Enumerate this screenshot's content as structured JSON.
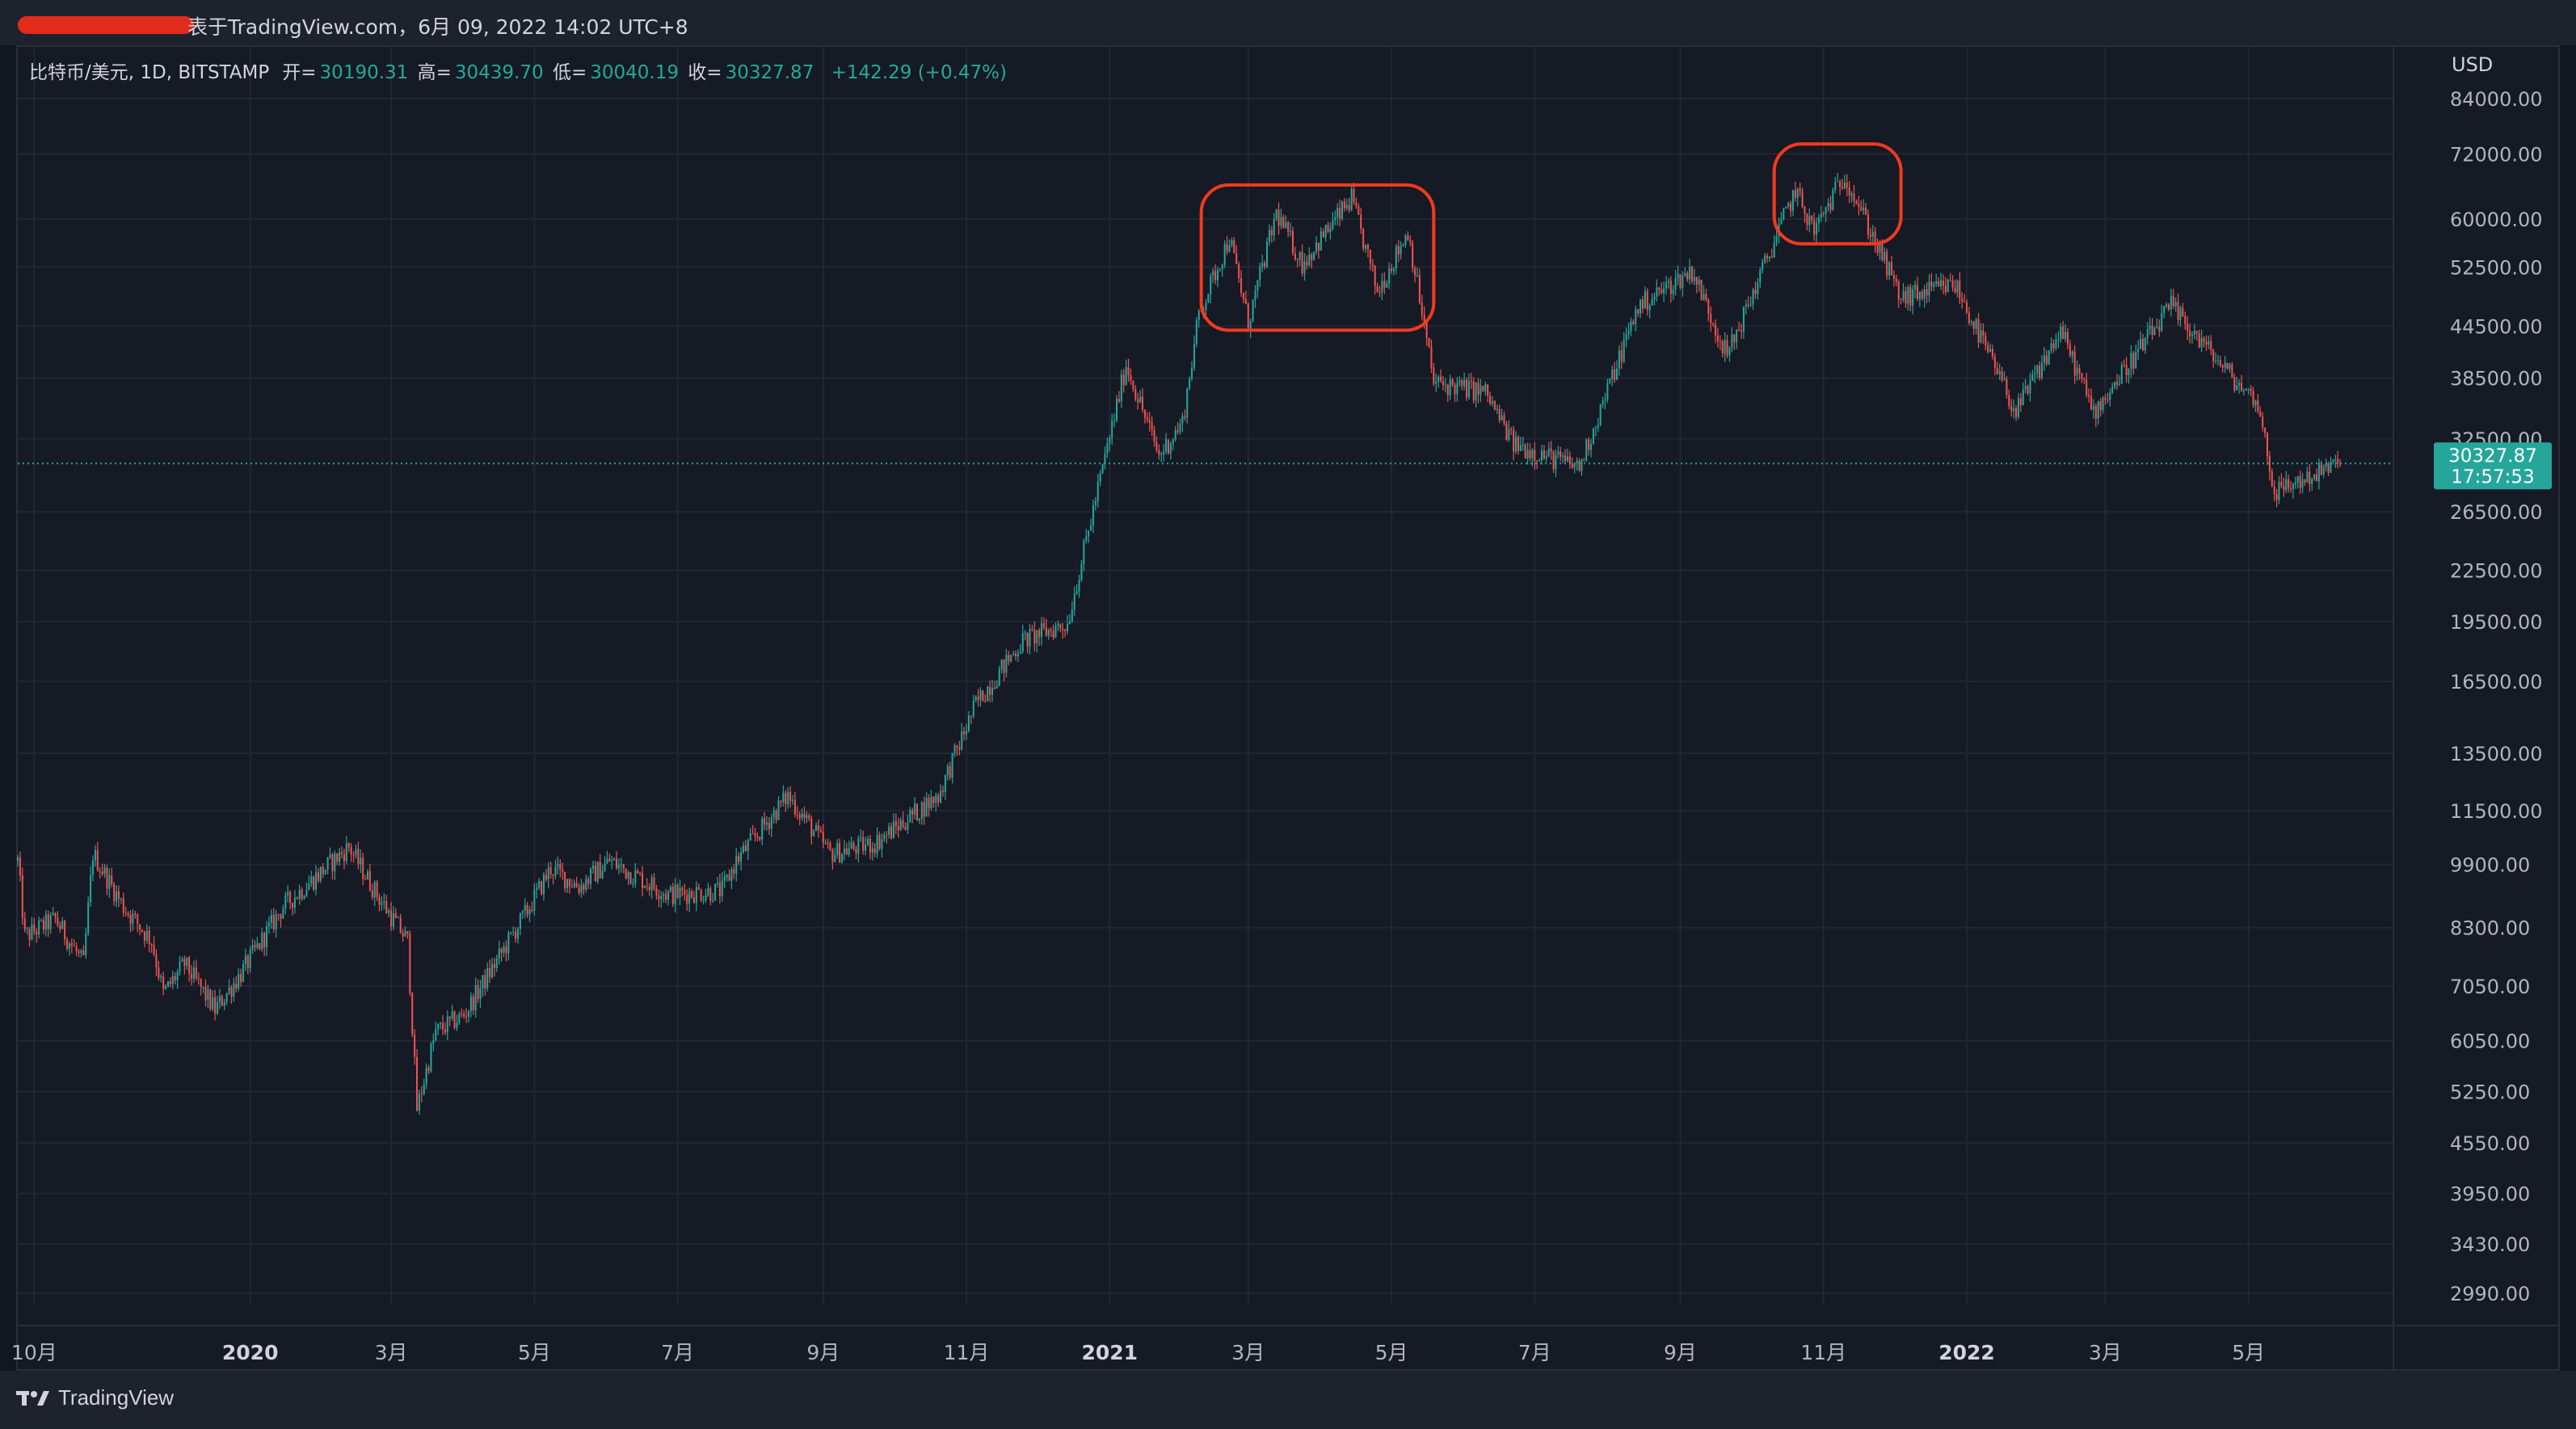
{
  "header": {
    "text": "表于TradingView.com，6月 09, 2022 14:02 UTC+8"
  },
  "legend": {
    "symbol": "比特币/美元, 1D, BITSTAMP",
    "open_label": "开=",
    "open": "30190.31",
    "high_label": "高=",
    "high": "30439.70",
    "low_label": "低=",
    "low": "30040.19",
    "close_label": "收=",
    "close": "30327.87",
    "change": "+142.29 (+0.47%)"
  },
  "footer": {
    "brand": "TradingView"
  },
  "chart_data": {
    "type": "candlestick",
    "currency": "USD",
    "scale": "log",
    "ylim": [
      2990,
      84000
    ],
    "y_ticks": [
      2990,
      3430,
      3950,
      4550,
      5250,
      6050,
      7050,
      8300,
      9900,
      11500,
      13500,
      16500,
      19500,
      22500,
      26500,
      32500,
      38500,
      44500,
      52500,
      60000,
      72000,
      84000
    ],
    "y_tick_labels": [
      "2990.00",
      "3430.00",
      "3950.00",
      "4550.00",
      "5250.00",
      "6050.00",
      "7050.00",
      "8300.00",
      "9900.00",
      "11500.00",
      "13500.00",
      "16500.00",
      "19500.00",
      "22500.00",
      "26500.00",
      "32500.00",
      "38500.00",
      "44500.00",
      "52500.00",
      "60000.00",
      "72000.00",
      "84000.00"
    ],
    "x_labels": [
      {
        "date": "2019-10-01",
        "label": "10月",
        "bold": false
      },
      {
        "date": "2020-01-01",
        "label": "2020",
        "bold": true
      },
      {
        "date": "2020-03-01",
        "label": "3月",
        "bold": false
      },
      {
        "date": "2020-05-01",
        "label": "5月",
        "bold": false
      },
      {
        "date": "2020-07-01",
        "label": "7月",
        "bold": false
      },
      {
        "date": "2020-09-01",
        "label": "9月",
        "bold": false
      },
      {
        "date": "2020-11-01",
        "label": "11月",
        "bold": false
      },
      {
        "date": "2021-01-01",
        "label": "2021",
        "bold": true
      },
      {
        "date": "2021-03-01",
        "label": "3月",
        "bold": false
      },
      {
        "date": "2021-05-01",
        "label": "5月",
        "bold": false
      },
      {
        "date": "2021-07-01",
        "label": "7月",
        "bold": false
      },
      {
        "date": "2021-09-01",
        "label": "9月",
        "bold": false
      },
      {
        "date": "2021-11-01",
        "label": "11月",
        "bold": false
      },
      {
        "date": "2022-01-01",
        "label": "2022",
        "bold": true
      },
      {
        "date": "2022-03-01",
        "label": "3月",
        "bold": false
      },
      {
        "date": "2022-05-01",
        "label": "5月",
        "bold": false
      }
    ],
    "x_range": [
      "2019-09-24",
      "2022-07-01"
    ],
    "price_path": [
      [
        "2019-09-24",
        10000
      ],
      [
        "2019-09-27",
        8100
      ],
      [
        "2019-10-10",
        8500
      ],
      [
        "2019-10-22",
        7500
      ],
      [
        "2019-10-26",
        10200
      ],
      [
        "2019-11-08",
        8800
      ],
      [
        "2019-11-20",
        8000
      ],
      [
        "2019-11-25",
        6900
      ],
      [
        "2019-12-04",
        7500
      ],
      [
        "2019-12-17",
        6600
      ],
      [
        "2019-12-28",
        7300
      ],
      [
        "2020-01-15",
        8800
      ],
      [
        "2020-02-12",
        10400
      ],
      [
        "2020-02-25",
        9000
      ],
      [
        "2020-03-08",
        8000
      ],
      [
        "2020-03-12",
        5000
      ],
      [
        "2020-03-20",
        6200
      ],
      [
        "2020-04-01",
        6500
      ],
      [
        "2020-04-29",
        8800
      ],
      [
        "2020-05-08",
        9800
      ],
      [
        "2020-05-20",
        9300
      ],
      [
        "2020-06-02",
        10000
      ],
      [
        "2020-06-27",
        9100
      ],
      [
        "2020-07-20",
        9200
      ],
      [
        "2020-07-26",
        10000
      ],
      [
        "2020-08-17",
        12000
      ],
      [
        "2020-09-04",
        10200
      ],
      [
        "2020-09-23",
        10500
      ],
      [
        "2020-10-20",
        12000
      ],
      [
        "2020-11-05",
        15500
      ],
      [
        "2020-11-25",
        18500
      ],
      [
        "2020-12-14",
        19400
      ],
      [
        "2021-01-08",
        40000
      ],
      [
        "2021-01-22",
        31000
      ],
      [
        "2021-02-01",
        34000
      ],
      [
        "2021-02-08",
        46000
      ],
      [
        "2021-02-21",
        57000
      ],
      [
        "2021-03-01",
        45000
      ],
      [
        "2021-03-13",
        61000
      ],
      [
        "2021-03-24",
        53000
      ],
      [
        "2021-04-14",
        63500
      ],
      [
        "2021-04-25",
        49000
      ],
      [
        "2021-05-08",
        58000
      ],
      [
        "2021-05-12",
        50000
      ],
      [
        "2021-05-19",
        38000
      ],
      [
        "2021-06-10",
        37000
      ],
      [
        "2021-06-22",
        32000
      ],
      [
        "2021-07-20",
        30000
      ],
      [
        "2021-08-14",
        47000
      ],
      [
        "2021-09-06",
        52000
      ],
      [
        "2021-09-21",
        41000
      ],
      [
        "2021-10-20",
        65000
      ],
      [
        "2021-10-28",
        58000
      ],
      [
        "2021-11-10",
        68000
      ],
      [
        "2021-11-26",
        54000
      ],
      [
        "2021-12-04",
        48000
      ],
      [
        "2021-12-27",
        50000
      ],
      [
        "2022-01-22",
        35000
      ],
      [
        "2022-02-10",
        44000
      ],
      [
        "2022-02-24",
        35000
      ],
      [
        "2022-03-29",
        47000
      ],
      [
        "2022-04-26",
        38000
      ],
      [
        "2022-05-05",
        36000
      ],
      [
        "2022-05-12",
        28000
      ],
      [
        "2022-06-09",
        30327.87
      ]
    ],
    "last_price": 30327.87,
    "last_price_label": "30327.87",
    "countdown": "17:57:53",
    "annotations": [
      {
        "shape": "rounded-rect",
        "from": "2021-02-09",
        "to": "2021-05-19",
        "price_low": 44000,
        "price_high": 66000,
        "color": "#f23a1e"
      },
      {
        "shape": "rounded-rect",
        "from": "2021-10-11",
        "to": "2021-12-04",
        "price_low": 56000,
        "price_high": 74000,
        "color": "#f23a1e"
      }
    ],
    "colors": {
      "up": "#26a69a",
      "down": "#ef5350",
      "price_line": "#26a69a",
      "grid": "#232734",
      "annotation": "#f23a1e"
    }
  }
}
